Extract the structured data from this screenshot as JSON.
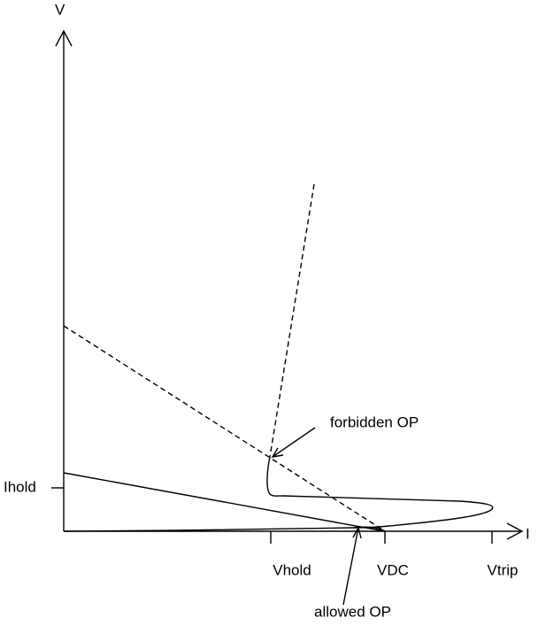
{
  "axes": {
    "y_label": "V",
    "x_label": "I"
  },
  "y_ticks": [
    "Ihold"
  ],
  "x_ticks": [
    "Vhold",
    "VDC",
    "Vtrip"
  ],
  "annotations": [
    "forbidden OP",
    "allowed OP"
  ]
}
